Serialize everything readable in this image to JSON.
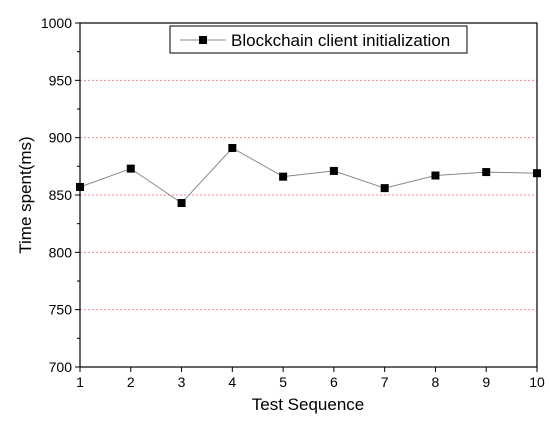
{
  "chart_data": {
    "type": "line",
    "title": "",
    "xlabel": "Test Sequence",
    "ylabel": "Time spent(ms)",
    "x": [
      1,
      2,
      3,
      4,
      5,
      6,
      7,
      8,
      9,
      10
    ],
    "x_ticks": [
      "1",
      "2",
      "3",
      "4",
      "5",
      "6",
      "7",
      "8",
      "9",
      "10"
    ],
    "y_ticks": [
      "700",
      "750",
      "800",
      "850",
      "900",
      "950",
      "1000"
    ],
    "xlim": [
      1,
      10
    ],
    "ylim": [
      700,
      1000
    ],
    "grid": "horizontal",
    "grid_color": "#f08a8a",
    "marker": "square",
    "line_color": "#888888",
    "marker_color": "#000000",
    "legend_position": "top-right",
    "series": [
      {
        "name": "Blockchain client initialization",
        "values": [
          857,
          873,
          843,
          891,
          866,
          871,
          856,
          867,
          870,
          869
        ]
      }
    ]
  }
}
